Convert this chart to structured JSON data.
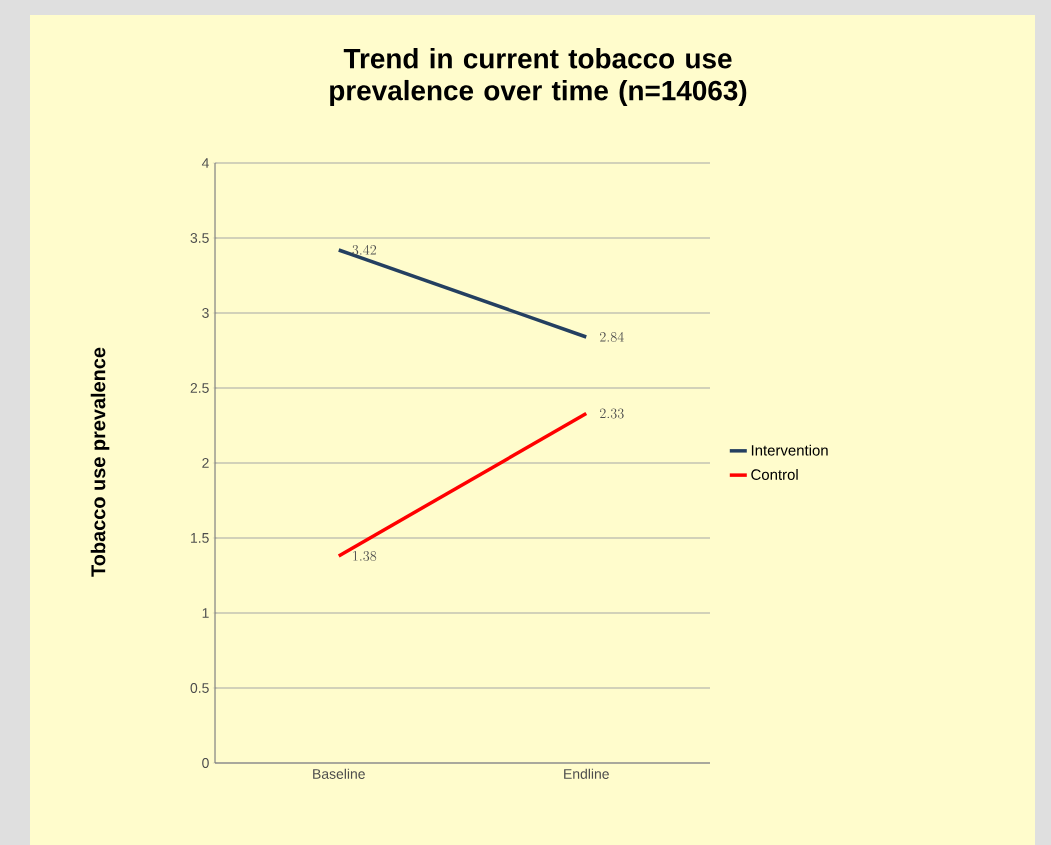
{
  "chart_data": {
    "type": "line",
    "title": "Trend in current tobacco use prevalence over time (n=14063)",
    "ylabel": "Tobacco use prevalence",
    "categories": [
      "Baseline",
      "Endline"
    ],
    "series": [
      {
        "name": "Intervention",
        "color": "#243f60",
        "values": [
          3.42,
          2.84
        ]
      },
      {
        "name": "Control",
        "color": "#ff0000",
        "values": [
          1.38,
          2.33
        ]
      }
    ],
    "ylim": [
      0,
      4
    ],
    "yticks": [
      0,
      0.5,
      1,
      1.5,
      2,
      2.5,
      3,
      3.5,
      4
    ],
    "grid": "y",
    "legend": "right",
    "data_labels": true
  }
}
